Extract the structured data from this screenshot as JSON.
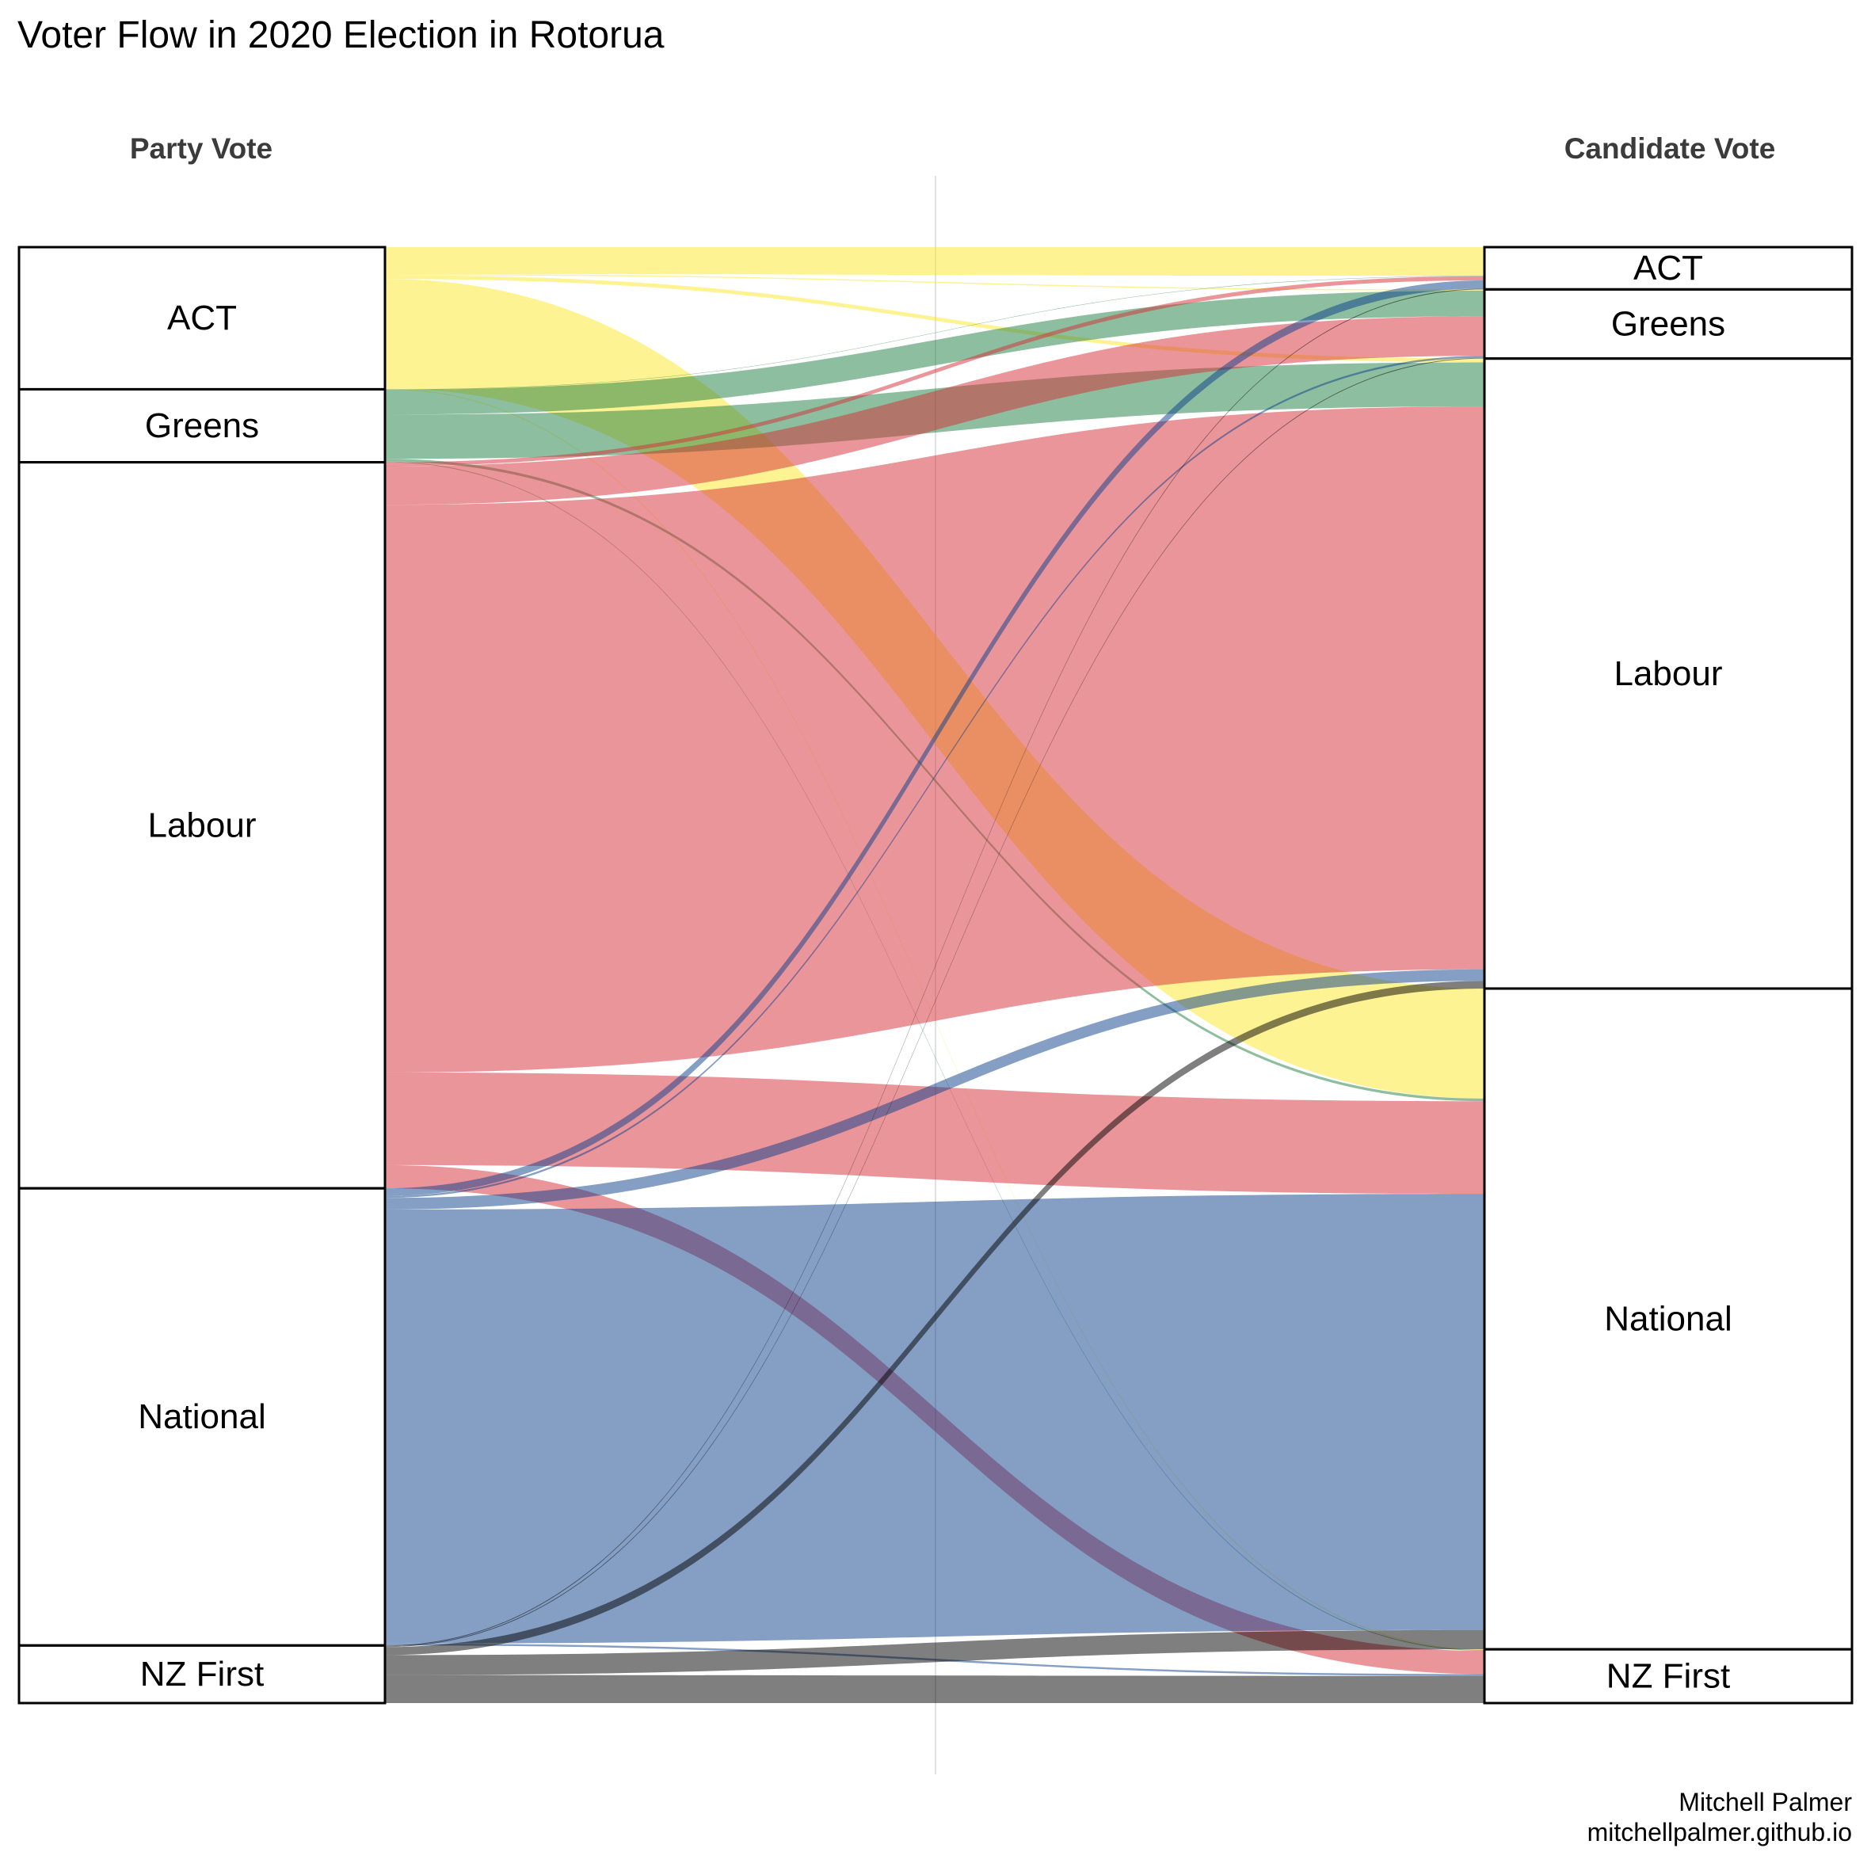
{
  "chart_data": {
    "type": "sankey",
    "title": "Voter Flow in 2020 Election in Rotorua",
    "left_axis_label": "Party Vote",
    "right_axis_label": "Candidate Vote",
    "caption_line1": "Mitchell Palmer",
    "caption_line2": "mitchellpalmer.github.io",
    "left_nodes": [
      {
        "name": "ACT",
        "total": 3700
      },
      {
        "name": "Greens",
        "total": 1900
      },
      {
        "name": "Labour",
        "total": 18900
      },
      {
        "name": "National",
        "total": 11900
      },
      {
        "name": "NZ First",
        "total": 1500
      }
    ],
    "right_nodes": [
      {
        "name": "ACT",
        "total": 1100
      },
      {
        "name": "Greens",
        "total": 1800
      },
      {
        "name": "Labour",
        "total": 16400
      },
      {
        "name": "National",
        "total": 17200
      },
      {
        "name": "NZ First",
        "total": 1400
      }
    ],
    "flows": [
      {
        "from": "ACT",
        "to": "ACT",
        "value": 700
      },
      {
        "from": "ACT",
        "to": "Greens",
        "value": 30
      },
      {
        "from": "ACT",
        "to": "Labour",
        "value": 100
      },
      {
        "from": "ACT",
        "to": "National",
        "value": 2850
      },
      {
        "from": "ACT",
        "to": "NZ First",
        "value": 20
      },
      {
        "from": "Greens",
        "to": "ACT",
        "value": 10
      },
      {
        "from": "Greens",
        "to": "Greens",
        "value": 650
      },
      {
        "from": "Greens",
        "to": "Labour",
        "value": 1150
      },
      {
        "from": "Greens",
        "to": "National",
        "value": 70
      },
      {
        "from": "Greens",
        "to": "NZ First",
        "value": 20
      },
      {
        "from": "Labour",
        "to": "ACT",
        "value": 100
      },
      {
        "from": "Labour",
        "to": "Greens",
        "value": 1000
      },
      {
        "from": "Labour",
        "to": "Labour",
        "value": 14700
      },
      {
        "from": "Labour",
        "to": "National",
        "value": 2400
      },
      {
        "from": "Labour",
        "to": "NZ First",
        "value": 600
      },
      {
        "from": "National",
        "to": "ACT",
        "value": 200
      },
      {
        "from": "National",
        "to": "Greens",
        "value": 50
      },
      {
        "from": "National",
        "to": "Labour",
        "value": 300
      },
      {
        "from": "National",
        "to": "National",
        "value": 11300
      },
      {
        "from": "National",
        "to": "NZ First",
        "value": 50
      },
      {
        "from": "NZ First",
        "to": "ACT",
        "value": 20
      },
      {
        "from": "NZ First",
        "to": "Greens",
        "value": 20
      },
      {
        "from": "NZ First",
        "to": "Labour",
        "value": 200
      },
      {
        "from": "NZ First",
        "to": "National",
        "value": 500
      },
      {
        "from": "NZ First",
        "to": "NZ First",
        "value": 700
      }
    ],
    "colors": {
      "ACT": "#fde725",
      "Greens": "#1b7d3f",
      "Labour": "#d62c35",
      "National": "#0a3d8a",
      "NZ First": "#000000"
    },
    "ribbon_opacity": 0.5
  }
}
